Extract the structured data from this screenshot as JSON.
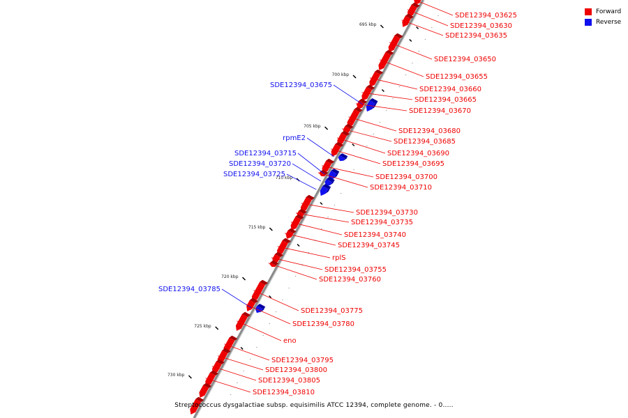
{
  "caption": "Streptococcus dysgalactiae subsp. equisimilis ATCC 12394, complete genome. - 0.....",
  "legend": [
    {
      "label": "Forward",
      "color": "#ee0000"
    },
    {
      "label": "Reverse",
      "color": "#1010ee"
    }
  ],
  "colors": {
    "forward": "#ee0000",
    "reverse": "#1010ee",
    "backbone": "#8a8a8a"
  },
  "ticks": [
    "695 kbp",
    "700 kbp",
    "705 kbp",
    "710 kbp",
    "715 kbp",
    "720 kbp",
    "725 kbp",
    "730 kbp"
  ],
  "genes": [
    {
      "name": "SDE12394_03625",
      "strand": "forward"
    },
    {
      "name": "SDE12394_03630",
      "strand": "forward"
    },
    {
      "name": "SDE12394_03635",
      "strand": "forward"
    },
    {
      "name": "SDE12394_03650",
      "strand": "forward"
    },
    {
      "name": "SDE12394_03655",
      "strand": "forward"
    },
    {
      "name": "SDE12394_03660",
      "strand": "forward"
    },
    {
      "name": "SDE12394_03665",
      "strand": "forward"
    },
    {
      "name": "SDE12394_03670",
      "strand": "forward"
    },
    {
      "name": "SDE12394_03675",
      "strand": "reverse"
    },
    {
      "name": "SDE12394_03680",
      "strand": "forward"
    },
    {
      "name": "SDE12394_03685",
      "strand": "forward"
    },
    {
      "name": "SDE12394_03690",
      "strand": "forward"
    },
    {
      "name": "SDE12394_03695",
      "strand": "forward"
    },
    {
      "name": "rpmE2",
      "strand": "reverse"
    },
    {
      "name": "SDE12394_03715",
      "strand": "reverse"
    },
    {
      "name": "SDE12394_03720",
      "strand": "reverse"
    },
    {
      "name": "SDE12394_03725",
      "strand": "reverse"
    },
    {
      "name": "SDE12394_03700",
      "strand": "forward"
    },
    {
      "name": "SDE12394_03710",
      "strand": "forward"
    },
    {
      "name": "SDE12394_03730",
      "strand": "forward"
    },
    {
      "name": "SDE12394_03735",
      "strand": "forward"
    },
    {
      "name": "SDE12394_03740",
      "strand": "forward"
    },
    {
      "name": "SDE12394_03745",
      "strand": "forward"
    },
    {
      "name": "rplS",
      "strand": "forward"
    },
    {
      "name": "SDE12394_03755",
      "strand": "forward"
    },
    {
      "name": "SDE12394_03760",
      "strand": "forward"
    },
    {
      "name": "SDE12394_03785",
      "strand": "reverse"
    },
    {
      "name": "SDE12394_03775",
      "strand": "forward"
    },
    {
      "name": "SDE12394_03780",
      "strand": "forward"
    },
    {
      "name": "eno",
      "strand": "forward"
    },
    {
      "name": "SDE12394_03795",
      "strand": "forward"
    },
    {
      "name": "SDE12394_03800",
      "strand": "forward"
    },
    {
      "name": "SDE12394_03805",
      "strand": "forward"
    },
    {
      "name": "SDE12394_03810",
      "strand": "forward"
    }
  ]
}
